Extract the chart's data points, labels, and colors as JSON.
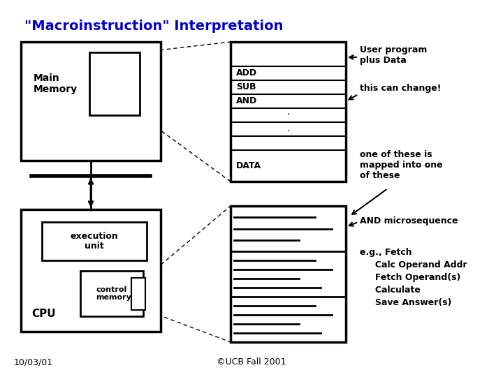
{
  "title": "\"Macroinstruction\" Interpretation",
  "title_color": "#0000CC",
  "bg_color": "#FFFFFF",
  "footer_left": "10/03/01",
  "footer_right": "©UCB Fall 2001",
  "main_memory_label": "Main\nMemory",
  "execution_unit_label": "execution\nunit",
  "cpu_label": "CPU",
  "control_memory_label": "control\nmemory",
  "user_program_label": "User program\nplus Data",
  "this_can_change_label": "this can change!",
  "one_of_these_label": "one of these is\nmapped into one\nof these",
  "and_microseq_label": "AND microsequence",
  "eg_label": "e.g., Fetch\n     Calc Operand Addr\n     Fetch Operand(s)\n     Calculate\n     Save Answer(s)",
  "add_label": "ADD",
  "sub_label": "SUB",
  "and_label": "AND",
  "data_label": "DATA"
}
